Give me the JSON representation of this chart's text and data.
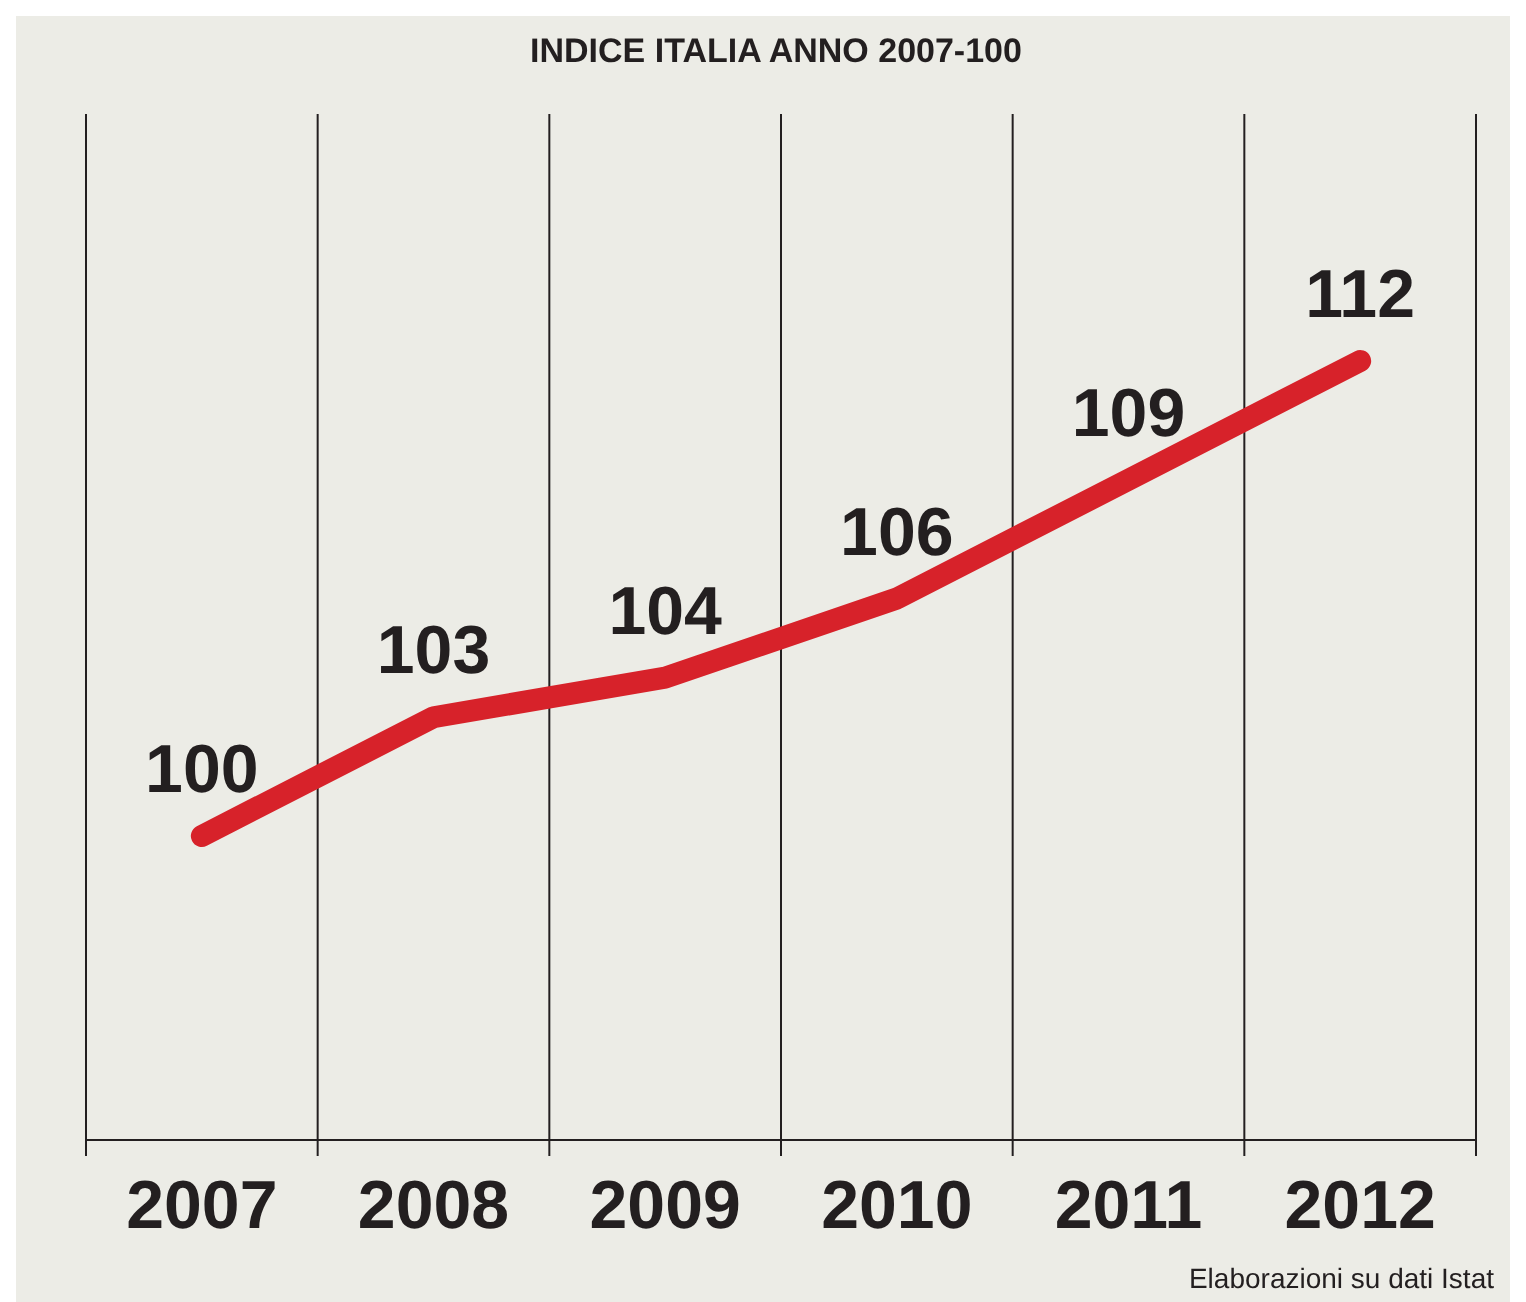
{
  "chart_data": {
    "type": "line",
    "title": "INDICE ITALIA ANNO 2007-100",
    "categories": [
      "2007",
      "2008",
      "2009",
      "2010",
      "2011",
      "2012"
    ],
    "series": [
      {
        "color": "#d7222a",
        "values": [
          100,
          103,
          104,
          106,
          109,
          112
        ]
      }
    ],
    "data_labels": true,
    "grid": "x",
    "annotations": [
      "Elaborazioni su dati Istat"
    ]
  }
}
